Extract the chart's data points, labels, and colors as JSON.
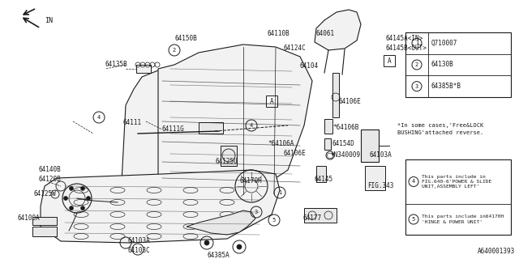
{
  "bg_color": "#ffffff",
  "line_color": "#1a1a1a",
  "fig_number": "A640001393",
  "legend_items": [
    {
      "num": "1",
      "text": "Q710007"
    },
    {
      "num": "2",
      "text": "64130B"
    },
    {
      "num": "3",
      "text": "64385B*B"
    }
  ],
  "note_items": [
    {
      "num": "4",
      "text": "This parts include in\nFIG.640-6'POWER & SLIDE\nUNIT,ASSEMBLY LEFT'"
    },
    {
      "num": "5",
      "text": "This parts include in64170H\n'HINGE & POWER UNIT'"
    }
  ],
  "special_note": "*In some cases,'Free&LOCK\nBUSHING'attached reverse.",
  "arrow_label": "IN"
}
